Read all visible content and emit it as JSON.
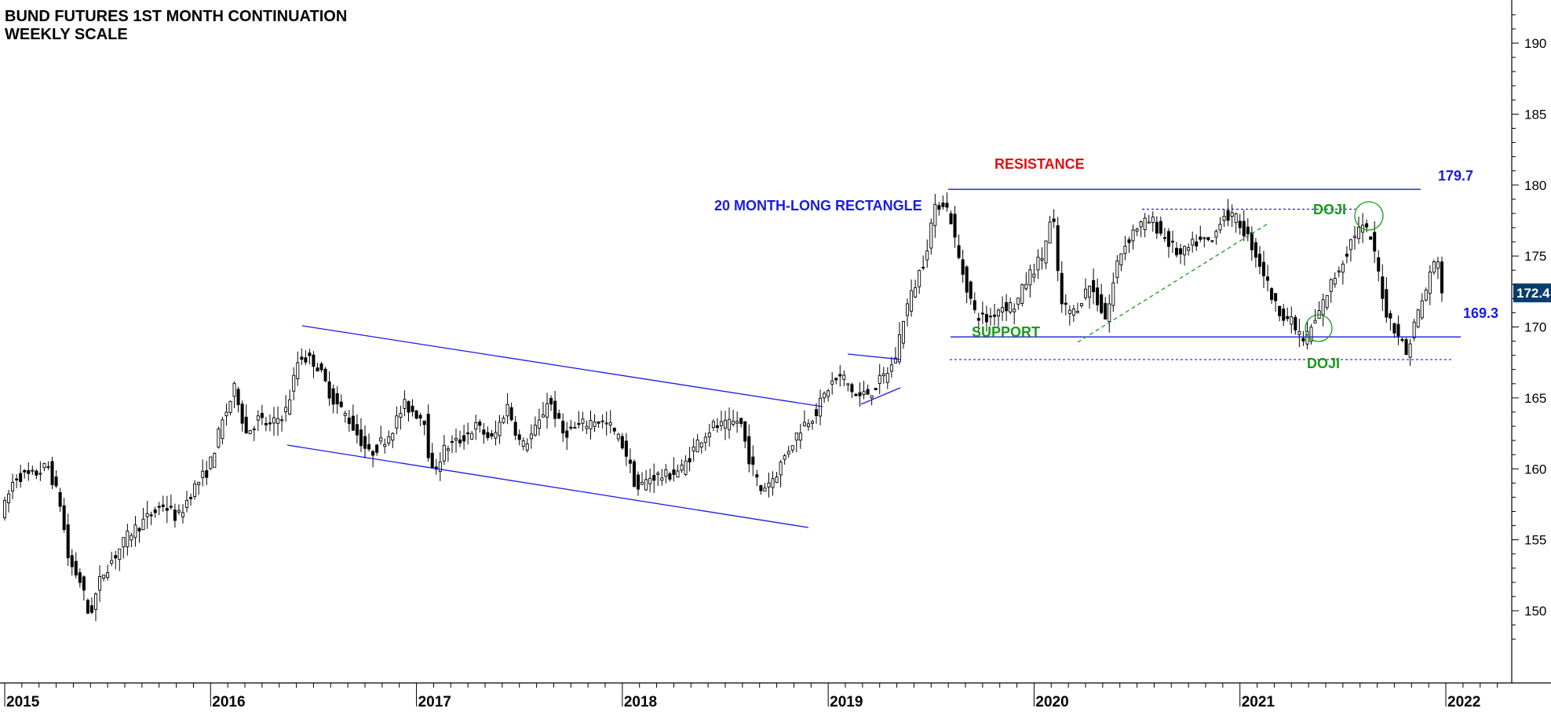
{
  "title_line1": "BUND FUTURES 1ST MONTH CONTINUATION",
  "title_line2": "WEEKLY SCALE",
  "colors": {
    "annotation_blue": "#1a1ae6",
    "resistance_red": "#e01010",
    "support_green": "#1a9a1a",
    "last_price_bg": "#0a3d6e"
  },
  "chart_data": {
    "type": "candlestick",
    "y_axis": {
      "min": 147,
      "max": 192,
      "ticks": [
        150,
        155,
        160,
        165,
        170,
        175,
        180,
        185,
        190
      ],
      "side": "right"
    },
    "x_axis": {
      "labels": [
        "2015",
        "2016",
        "2017",
        "2018",
        "2019",
        "2020",
        "2021",
        "2022"
      ],
      "min": 2015.0,
      "max": 2022.24
    },
    "last_price": "172.4",
    "price_path": [
      [
        2015.0,
        157.0
      ],
      [
        2015.06,
        159.5
      ],
      [
        2015.14,
        159.5
      ],
      [
        2015.22,
        160.2
      ],
      [
        2015.28,
        157.5
      ],
      [
        2015.32,
        153.5
      ],
      [
        2015.38,
        152.0
      ],
      [
        2015.42,
        149.5
      ],
      [
        2015.48,
        152.5
      ],
      [
        2015.55,
        154.0
      ],
      [
        2015.62,
        155.5
      ],
      [
        2015.7,
        156.5
      ],
      [
        2015.78,
        157.5
      ],
      [
        2015.85,
        156.5
      ],
      [
        2015.92,
        158.5
      ],
      [
        2016.0,
        160.0
      ],
      [
        2016.06,
        163.0
      ],
      [
        2016.13,
        165.8
      ],
      [
        2016.18,
        162.5
      ],
      [
        2016.24,
        163.5
      ],
      [
        2016.3,
        163.0
      ],
      [
        2016.38,
        164.2
      ],
      [
        2016.44,
        168.0
      ],
      [
        2016.52,
        167.5
      ],
      [
        2016.6,
        165.0
      ],
      [
        2016.68,
        163.5
      ],
      [
        2016.78,
        161.0
      ],
      [
        2016.88,
        162.5
      ],
      [
        2016.95,
        164.5
      ],
      [
        2017.05,
        163.5
      ],
      [
        2017.08,
        159.5
      ],
      [
        2017.15,
        161.5
      ],
      [
        2017.22,
        162.0
      ],
      [
        2017.3,
        163.0
      ],
      [
        2017.38,
        162.0
      ],
      [
        2017.45,
        164.5
      ],
      [
        2017.52,
        161.5
      ],
      [
        2017.6,
        163.0
      ],
      [
        2017.65,
        165.0
      ],
      [
        2017.72,
        162.5
      ],
      [
        2017.8,
        163.0
      ],
      [
        2017.88,
        163.5
      ],
      [
        2017.95,
        163.0
      ],
      [
        2018.02,
        161.5
      ],
      [
        2018.08,
        158.5
      ],
      [
        2018.15,
        159.5
      ],
      [
        2018.22,
        159.5
      ],
      [
        2018.3,
        160.0
      ],
      [
        2018.38,
        162.0
      ],
      [
        2018.45,
        163.0
      ],
      [
        2018.52,
        163.0
      ],
      [
        2018.58,
        163.5
      ],
      [
        2018.62,
        161.0
      ],
      [
        2018.68,
        158.5
      ],
      [
        2018.75,
        159.5
      ],
      [
        2018.82,
        161.5
      ],
      [
        2018.88,
        163.0
      ],
      [
        2018.95,
        164.0
      ],
      [
        2019.02,
        166.0
      ],
      [
        2019.08,
        166.5
      ],
      [
        2019.15,
        165.0
      ],
      [
        2019.22,
        165.5
      ],
      [
        2019.28,
        166.5
      ],
      [
        2019.33,
        167.5
      ],
      [
        2019.38,
        171.0
      ],
      [
        2019.42,
        172.5
      ],
      [
        2019.48,
        175.0
      ],
      [
        2019.52,
        178.0
      ],
      [
        2019.56,
        179.0
      ],
      [
        2019.6,
        178.0
      ],
      [
        2019.64,
        175.0
      ],
      [
        2019.68,
        173.0
      ],
      [
        2019.72,
        171.0
      ],
      [
        2019.78,
        170.5
      ],
      [
        2019.85,
        171.5
      ],
      [
        2019.92,
        171.5
      ],
      [
        2019.98,
        173.5
      ],
      [
        2020.05,
        175.0
      ],
      [
        2020.1,
        178.0
      ],
      [
        2020.14,
        171.5
      ],
      [
        2020.2,
        171.0
      ],
      [
        2020.28,
        173.0
      ],
      [
        2020.36,
        170.5
      ],
      [
        2020.42,
        175.0
      ],
      [
        2020.5,
        177.0
      ],
      [
        2020.58,
        177.5
      ],
      [
        2020.66,
        176.0
      ],
      [
        2020.72,
        175.0
      ],
      [
        2020.8,
        176.0
      ],
      [
        2020.88,
        176.0
      ],
      [
        2020.92,
        178.0
      ],
      [
        2021.0,
        177.5
      ],
      [
        2021.06,
        176.0
      ],
      [
        2021.12,
        174.0
      ],
      [
        2021.18,
        171.5
      ],
      [
        2021.25,
        170.5
      ],
      [
        2021.32,
        169.0
      ],
      [
        2021.38,
        170.5
      ],
      [
        2021.45,
        173.0
      ],
      [
        2021.52,
        175.0
      ],
      [
        2021.56,
        176.5
      ],
      [
        2021.6,
        177.0
      ],
      [
        2021.64,
        176.5
      ],
      [
        2021.68,
        174.0
      ],
      [
        2021.72,
        171.0
      ],
      [
        2021.78,
        169.5
      ],
      [
        2021.82,
        168.0
      ],
      [
        2021.86,
        170.5
      ],
      [
        2021.9,
        172.0
      ],
      [
        2021.94,
        174.0
      ],
      [
        2021.97,
        175.0
      ],
      [
        2021.99,
        172.4
      ]
    ],
    "annotations": {
      "rectangle_label": "20 MONTH-LONG RECTANGLE",
      "resistance_label": "RESISTANCE",
      "support_label": "SUPPORT",
      "doji_top_label": "DOJI",
      "doji_bottom_label": "DOJI",
      "resistance_value": "179.7",
      "support_value": "169.3",
      "resistance_level": 179.7,
      "support_level": 169.3,
      "lower_dotted_level": 167.7,
      "upper_dotted_level": 178.3
    }
  }
}
